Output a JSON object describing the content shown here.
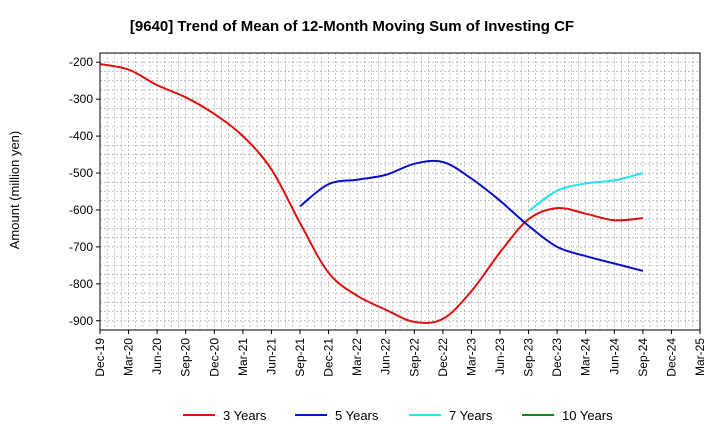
{
  "chart_data": {
    "type": "line",
    "title": "[9640]  Trend of Mean of 12-Month Moving Sum of Investing CF",
    "ylabel": "Amount (million yen)",
    "xlabel": "",
    "x": [
      "Dec-19",
      "Mar-20",
      "Jun-20",
      "Sep-20",
      "Dec-20",
      "Mar-21",
      "Jun-21",
      "Sep-21",
      "Dec-21",
      "Mar-22",
      "Jun-22",
      "Sep-22",
      "Dec-22",
      "Mar-23",
      "Jun-23",
      "Sep-23",
      "Dec-23",
      "Mar-24",
      "Jun-24",
      "Sep-24",
      "Dec-24",
      "Mar-25"
    ],
    "ylim": [
      -925,
      -175
    ],
    "yticks": [
      -200,
      -300,
      -400,
      -500,
      -600,
      -700,
      -800,
      -900
    ],
    "grid": true,
    "legend_position": "bottom",
    "series": [
      {
        "name": "3 Years",
        "color": "#dd1111",
        "values": [
          -205,
          -220,
          -262,
          -295,
          -340,
          -400,
          -490,
          -635,
          -770,
          -832,
          -870,
          -903,
          -895,
          -820,
          -715,
          -625,
          -595,
          -610,
          -628,
          -622,
          null,
          null
        ]
      },
      {
        "name": "5 Years",
        "color": "#0a10c8",
        "values": [
          null,
          null,
          null,
          null,
          null,
          null,
          null,
          -590,
          -530,
          -518,
          -505,
          -475,
          -470,
          -515,
          -575,
          -643,
          -700,
          -725,
          -745,
          -765,
          null,
          null
        ]
      },
      {
        "name": "7 Years",
        "color": "#22e5ee",
        "values": [
          null,
          null,
          null,
          null,
          null,
          null,
          null,
          null,
          null,
          null,
          null,
          null,
          null,
          null,
          null,
          -603,
          -548,
          -528,
          -520,
          -500,
          null,
          null
        ]
      },
      {
        "name": "10 Years",
        "color": "#128a12",
        "values": [
          null,
          null,
          null,
          null,
          null,
          null,
          null,
          null,
          null,
          null,
          null,
          null,
          null,
          null,
          null,
          null,
          null,
          null,
          null,
          null,
          null,
          null
        ]
      }
    ]
  }
}
